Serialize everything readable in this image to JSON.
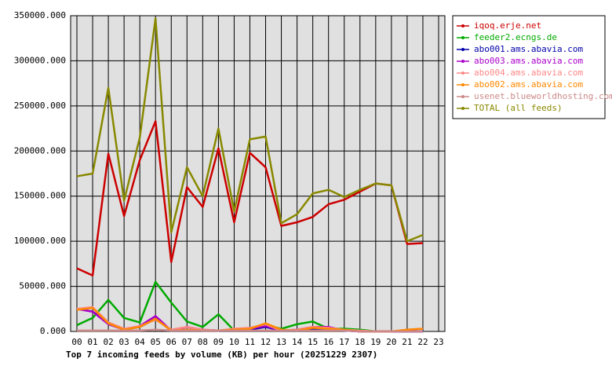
{
  "chart_data": {
    "type": "line",
    "title": "Top 7 incoming feeds by volume (KB) per hour (20251229 2307)",
    "categories": [
      "00",
      "01",
      "02",
      "03",
      "04",
      "05",
      "06",
      "07",
      "08",
      "09",
      "10",
      "11",
      "12",
      "13",
      "14",
      "15",
      "16",
      "17",
      "18",
      "19",
      "20",
      "21",
      "22",
      "23"
    ],
    "ylim": [
      0,
      350000
    ],
    "yticks": [
      {
        "value": 0,
        "label": "0.000"
      },
      {
        "value": 50000,
        "label": "50000.000"
      },
      {
        "value": 100000,
        "label": "100000.000"
      },
      {
        "value": 150000,
        "label": "150000.000"
      },
      {
        "value": 200000,
        "label": "200000.000"
      },
      {
        "value": 250000,
        "label": "250000.000"
      },
      {
        "value": 300000,
        "label": "300000.000"
      },
      {
        "value": 350000,
        "label": "350000.000"
      }
    ],
    "grid": true,
    "legend": "right",
    "series": [
      {
        "name": "iqoq.erje.net",
        "color": "#cc0000",
        "values": [
          70000,
          62000,
          197000,
          128000,
          190000,
          233000,
          77000,
          160000,
          138000,
          203000,
          121000,
          198000,
          182000,
          117000,
          121000,
          127000,
          141000,
          146000,
          155000,
          164000,
          162000,
          97000,
          98000,
          null
        ]
      },
      {
        "name": "feeder2.ecngs.de",
        "color": "#00aa00",
        "values": [
          7000,
          15000,
          35000,
          15000,
          10000,
          55000,
          32000,
          11000,
          5000,
          19000,
          1000,
          3000,
          7000,
          3000,
          8000,
          11000,
          3000,
          3000,
          2000,
          0,
          0,
          0,
          0,
          null
        ]
      },
      {
        "name": "abo001.ams.abavia.com",
        "color": "#0000aa",
        "values": [
          25000,
          22000,
          10000,
          2000,
          5000,
          14000,
          1000,
          2000,
          1000,
          1000,
          1000,
          2000,
          5000,
          1000,
          1000,
          3000,
          3000,
          1000,
          0,
          0,
          0,
          0,
          0,
          null
        ]
      },
      {
        "name": "abo003.ams.abavia.com",
        "color": "#aa00cc",
        "values": [
          25000,
          22000,
          8000,
          2000,
          6000,
          17000,
          1000,
          5000,
          2000,
          1000,
          2000,
          3000,
          6000,
          1000,
          2000,
          5000,
          5000,
          1000,
          0,
          0,
          0,
          0,
          0,
          null
        ]
      },
      {
        "name": "abo004.ams.abavia.com",
        "color": "#ff8888",
        "values": [
          25000,
          27000,
          10000,
          3000,
          6000,
          13000,
          2000,
          5000,
          2000,
          1000,
          3000,
          4000,
          8000,
          1000,
          2000,
          5000,
          4000,
          2000,
          1000,
          0,
          0,
          2000,
          3000,
          null
        ]
      },
      {
        "name": "abo002.ams.abavia.com",
        "color": "#ff8800",
        "values": [
          24000,
          26000,
          9000,
          2000,
          5000,
          14000,
          1000,
          2000,
          1000,
          1000,
          2000,
          3000,
          9000,
          2000,
          1000,
          4000,
          3000,
          2000,
          0,
          0,
          0,
          2000,
          3000,
          null
        ]
      },
      {
        "name": "usenet.blueworldhosting.com",
        "color": "#cc8888",
        "values": [
          1000,
          1000,
          1000,
          1000,
          1000,
          2000,
          1000,
          1000,
          1000,
          1000,
          1000,
          1000,
          1000,
          1000,
          1000,
          1000,
          1000,
          1000,
          0,
          0,
          0,
          0,
          0,
          null
        ]
      },
      {
        "name": "TOTAL (all feeds)",
        "color": "#888800",
        "values": [
          172000,
          175000,
          270000,
          145000,
          215000,
          347000,
          110000,
          182000,
          150000,
          225000,
          133000,
          213000,
          216000,
          120000,
          130000,
          153000,
          157000,
          149000,
          157000,
          164000,
          162000,
          100000,
          107000,
          null
        ]
      }
    ]
  }
}
